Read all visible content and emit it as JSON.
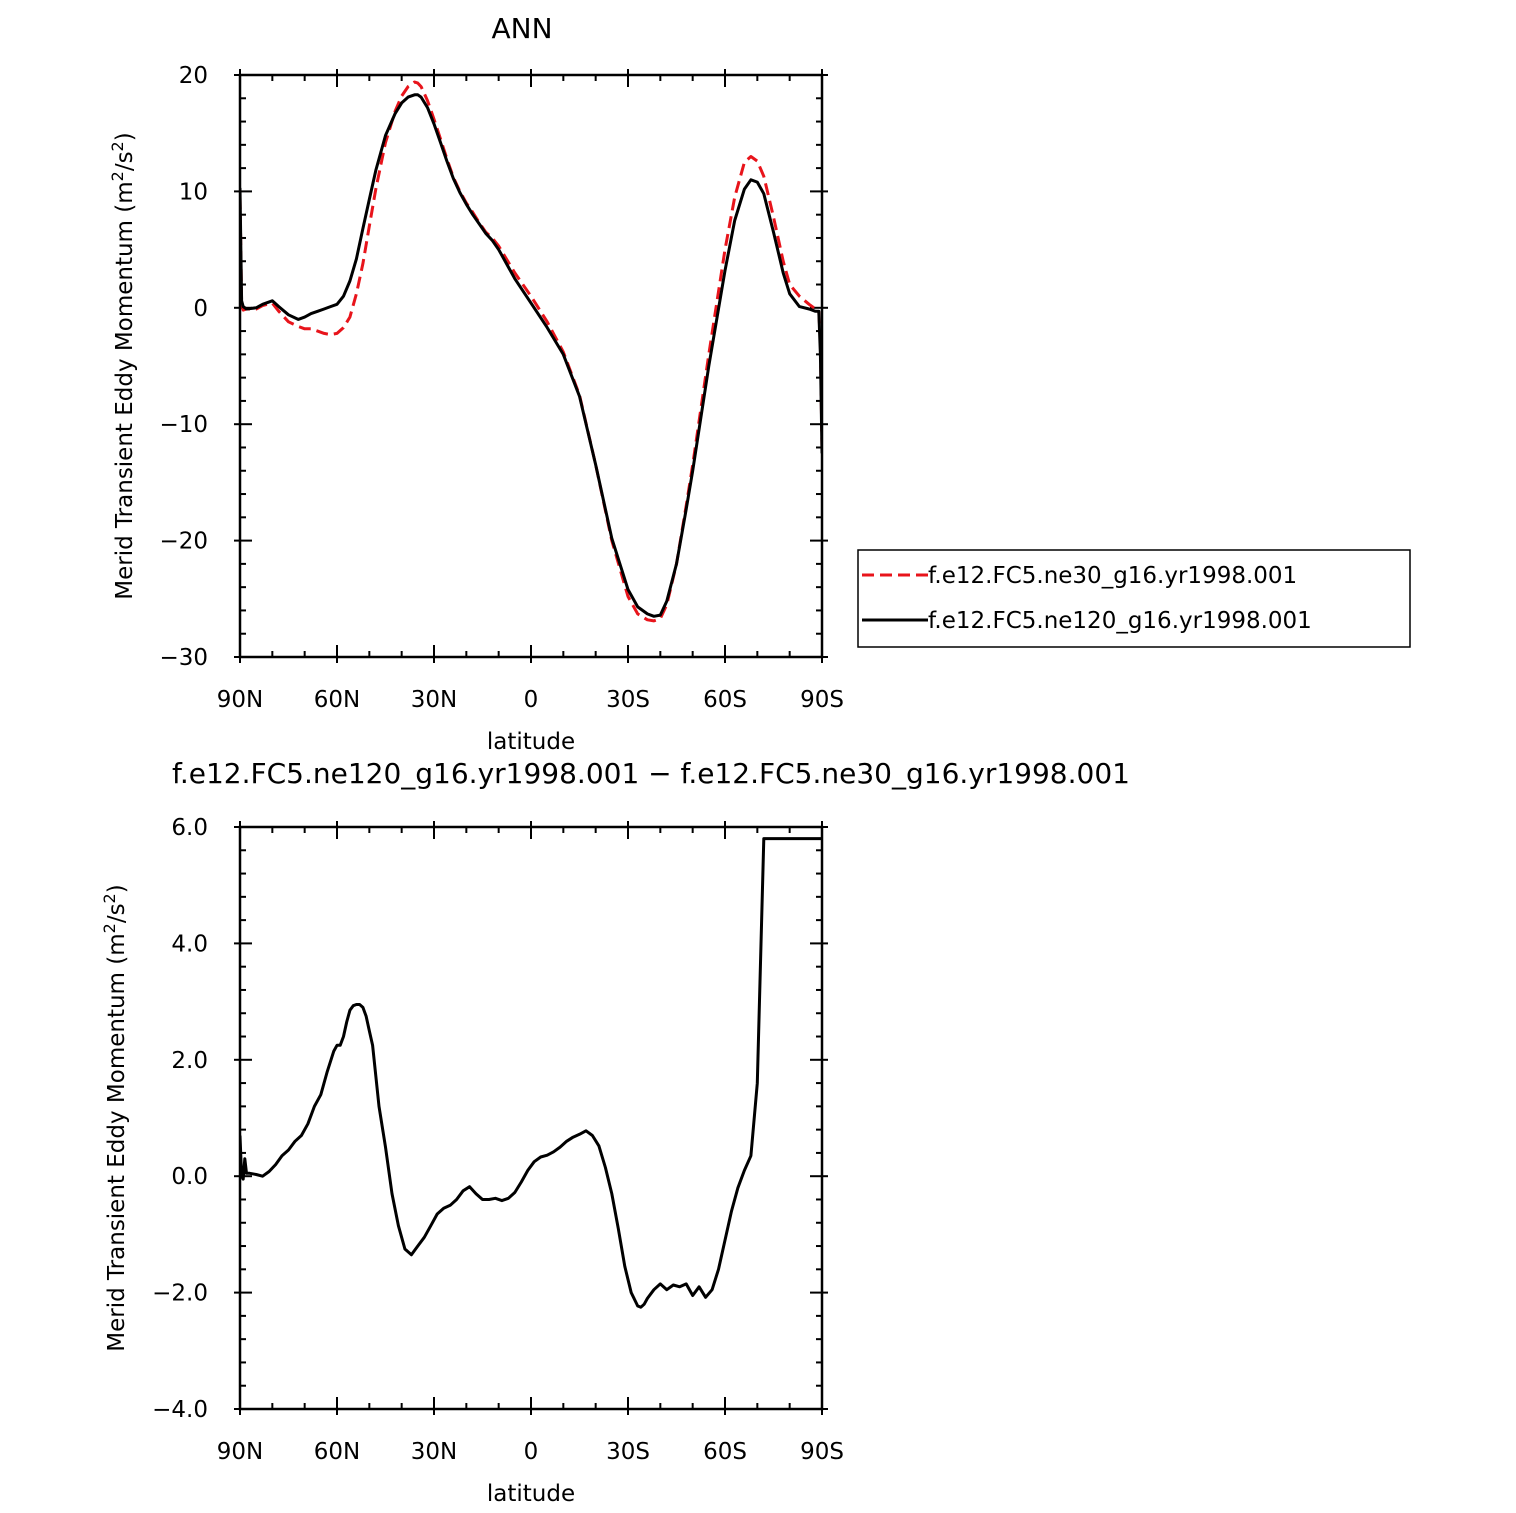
{
  "chart_data": [
    {
      "type": "line",
      "title": "ANN",
      "xlabel": "latitude",
      "ylabel": "Merid Transient Eddy Momentum (m²/s²)",
      "ylabel_parts": {
        "main": "Merid Transient Eddy Momentum (m",
        "sup": "2",
        "mid": "/s",
        "sup2": "2",
        "end": ")"
      },
      "xlim": [
        90,
        -90
      ],
      "ylim": [
        -30,
        20
      ],
      "x_ticks": [
        90,
        60,
        30,
        0,
        -30,
        -60,
        -90
      ],
      "x_tick_labels": [
        "90N",
        "60N",
        "30N",
        "0",
        "30S",
        "60S",
        "90S"
      ],
      "y_ticks": [
        20,
        10,
        0,
        -10,
        -20,
        -30
      ],
      "y_tick_labels": [
        "20",
        "10",
        "0",
        "−10",
        "−20",
        "−30"
      ],
      "legend": {
        "placement": "right"
      },
      "series": [
        {
          "name": "f.e12.FC5.ne30_g16.yr1998.001",
          "color": "#e8141b",
          "dash": "dashed",
          "x": [
            90,
            89.5,
            89,
            88,
            85,
            83,
            80,
            78,
            75,
            72,
            70,
            68,
            66,
            64,
            62,
            60,
            58,
            56,
            54,
            52,
            50,
            48,
            45,
            42,
            40,
            38,
            36,
            35,
            34,
            32,
            30,
            28,
            26,
            24,
            22,
            20,
            18,
            16,
            14,
            12,
            10,
            5,
            0,
            -5,
            -10,
            -15,
            -20,
            -25,
            -30,
            -33,
            -36,
            -38,
            -40,
            -42,
            -45,
            -48,
            -50,
            -55,
            -60,
            -63,
            -66,
            -68,
            -70,
            -72,
            -75,
            -78,
            -80,
            -83,
            -86,
            -88,
            -89,
            -89.5,
            -90
          ],
          "values": [
            9.5,
            0.5,
            -0.2,
            -0.1,
            -0.1,
            0.2,
            0.4,
            -0.3,
            -1.2,
            -1.6,
            -1.8,
            -1.8,
            -2.0,
            -2.2,
            -2.3,
            -2.2,
            -1.7,
            -0.8,
            1.2,
            3.8,
            7.0,
            10.2,
            14.2,
            16.9,
            18.2,
            19.0,
            19.4,
            19.3,
            19.0,
            17.8,
            16.2,
            14.5,
            12.8,
            11.2,
            10.0,
            9.0,
            8.2,
            7.3,
            6.5,
            6.0,
            5.3,
            3.0,
            1.0,
            -1.2,
            -3.8,
            -7.5,
            -13.5,
            -20.0,
            -24.8,
            -26.3,
            -26.8,
            -26.9,
            -26.7,
            -25.5,
            -22.0,
            -17.0,
            -13.5,
            -4.0,
            5.0,
            9.5,
            12.5,
            13.0,
            12.6,
            11.3,
            7.8,
            4.0,
            2.0,
            1.0,
            0.3,
            -0.1,
            -0.3,
            -3.0,
            -12.0
          ]
        },
        {
          "name": "f.e12.FC5.ne120_g16.yr1998.001",
          "color": "#000000",
          "dash": "solid",
          "x": [
            90,
            89.5,
            89,
            88,
            85,
            83,
            80,
            78,
            75,
            72,
            70,
            68,
            66,
            64,
            62,
            60,
            58,
            56,
            54,
            52,
            50,
            48,
            45,
            42,
            40,
            38,
            36,
            35,
            34,
            32,
            30,
            28,
            26,
            24,
            22,
            20,
            18,
            16,
            14,
            12,
            10,
            5,
            0,
            -5,
            -10,
            -15,
            -20,
            -25,
            -30,
            -33,
            -36,
            -38,
            -40,
            -42,
            -45,
            -48,
            -50,
            -55,
            -60,
            -63,
            -66,
            -68,
            -70,
            -72,
            -75,
            -78,
            -80,
            -83,
            -86,
            -88,
            -89,
            -89.5,
            -90
          ],
          "values": [
            10.3,
            0.6,
            0.1,
            -0.1,
            0.0,
            0.3,
            0.6,
            0.1,
            -0.6,
            -1.0,
            -0.8,
            -0.5,
            -0.3,
            -0.1,
            0.1,
            0.3,
            1.0,
            2.3,
            4.2,
            6.8,
            9.3,
            11.8,
            14.8,
            16.7,
            17.6,
            18.1,
            18.3,
            18.3,
            18.1,
            17.2,
            15.8,
            14.2,
            12.6,
            11.1,
            9.9,
            8.9,
            8.0,
            7.2,
            6.4,
            5.8,
            5.0,
            2.5,
            0.4,
            -1.7,
            -4.0,
            -7.6,
            -13.5,
            -19.8,
            -24.2,
            -25.7,
            -26.3,
            -26.5,
            -26.4,
            -25.2,
            -22.0,
            -17.3,
            -14.0,
            -5.0,
            3.2,
            7.5,
            10.2,
            11.0,
            10.8,
            9.8,
            6.5,
            3.0,
            1.2,
            0.1,
            -0.1,
            -0.3,
            -0.3,
            -4.0,
            -12.5
          ]
        }
      ]
    },
    {
      "type": "line",
      "title": "f.e12.FC5.ne120_g16.yr1998.001 − f.e12.FC5.ne30_g16.yr1998.001",
      "xlabel": "latitude",
      "ylabel": "Merid Transient Eddy Momentum (m²/s²)",
      "ylabel_parts": {
        "main": "Merid Transient Eddy Momentum (m",
        "sup": "2",
        "mid": "/s",
        "sup2": "2",
        "end": ")"
      },
      "xlim": [
        90,
        -90
      ],
      "ylim": [
        -4,
        6
      ],
      "x_ticks": [
        90,
        60,
        30,
        0,
        -30,
        -60,
        -90
      ],
      "x_tick_labels": [
        "90N",
        "60N",
        "30N",
        "0",
        "30S",
        "60S",
        "90S"
      ],
      "y_ticks": [
        6,
        4,
        2,
        0,
        -2,
        -4
      ],
      "y_tick_labels": [
        "6.0",
        "4.0",
        "2.0",
        "0.0",
        "−2.0",
        "−4.0"
      ],
      "series": [
        {
          "name": "",
          "color": "#000000",
          "dash": "solid",
          "x": [
            90,
            89.5,
            89,
            88.5,
            88,
            87,
            85,
            83,
            81,
            79,
            77,
            75,
            73,
            71,
            69,
            67,
            65,
            63,
            61,
            60,
            59,
            58,
            57,
            56,
            55,
            54,
            53,
            52,
            51,
            50,
            49,
            47,
            45,
            43,
            41,
            39,
            37,
            35,
            33,
            31,
            29,
            27,
            25,
            23,
            21,
            19,
            17,
            15,
            13,
            11,
            9,
            7,
            5,
            3,
            1,
            -1,
            -3,
            -5,
            -7,
            -9,
            -11,
            -13,
            -15,
            -17,
            -19,
            -21,
            -23,
            -25,
            -27,
            -29,
            -31,
            -33,
            -34,
            -35,
            -36,
            -38,
            -40,
            -42,
            -44,
            -46,
            -48,
            -50,
            -52,
            -54,
            -56,
            -58,
            -60,
            -62,
            -64,
            -66,
            -68,
            -70,
            -72,
            -73,
            -74,
            -75,
            -76,
            -77,
            -78,
            -80,
            -82,
            -84,
            -86,
            -88,
            -89,
            -89.5,
            -90
          ],
          "values": [
            0.7,
            0.0,
            -0.05,
            0.3,
            0.05,
            0.05,
            0.03,
            0.0,
            0.08,
            0.2,
            0.35,
            0.45,
            0.6,
            0.7,
            0.9,
            1.2,
            1.4,
            1.8,
            2.15,
            2.25,
            2.25,
            2.4,
            2.65,
            2.85,
            2.93,
            2.95,
            2.95,
            2.9,
            2.75,
            2.5,
            2.25,
            1.2,
            0.5,
            -0.3,
            -0.85,
            -1.25,
            -1.35,
            -1.2,
            -1.05,
            -0.85,
            -0.65,
            -0.55,
            -0.5,
            -0.4,
            -0.25,
            -0.18,
            -0.3,
            -0.4,
            -0.4,
            -0.38,
            -0.42,
            -0.38,
            -0.28,
            -0.1,
            0.1,
            0.25,
            0.33,
            0.36,
            0.42,
            0.5,
            0.6,
            0.67,
            0.72,
            0.78,
            0.7,
            0.52,
            0.15,
            -0.3,
            -0.9,
            -1.55,
            -2.0,
            -2.23,
            -2.25,
            -2.2,
            -2.1,
            -1.95,
            -1.85,
            -1.95,
            -1.87,
            -1.9,
            -1.85,
            -2.05,
            -1.9,
            -2.08,
            -1.95,
            -1.6,
            -1.1,
            -0.6,
            -0.2,
            0.1,
            0.35,
            1.6,
            5.8,
            5.8,
            5.8,
            5.8,
            5.8,
            5.8,
            5.8,
            5.8,
            5.8,
            5.8,
            5.8,
            5.8,
            5.8,
            5.8,
            5.8
          ]
        }
      ]
    }
  ]
}
